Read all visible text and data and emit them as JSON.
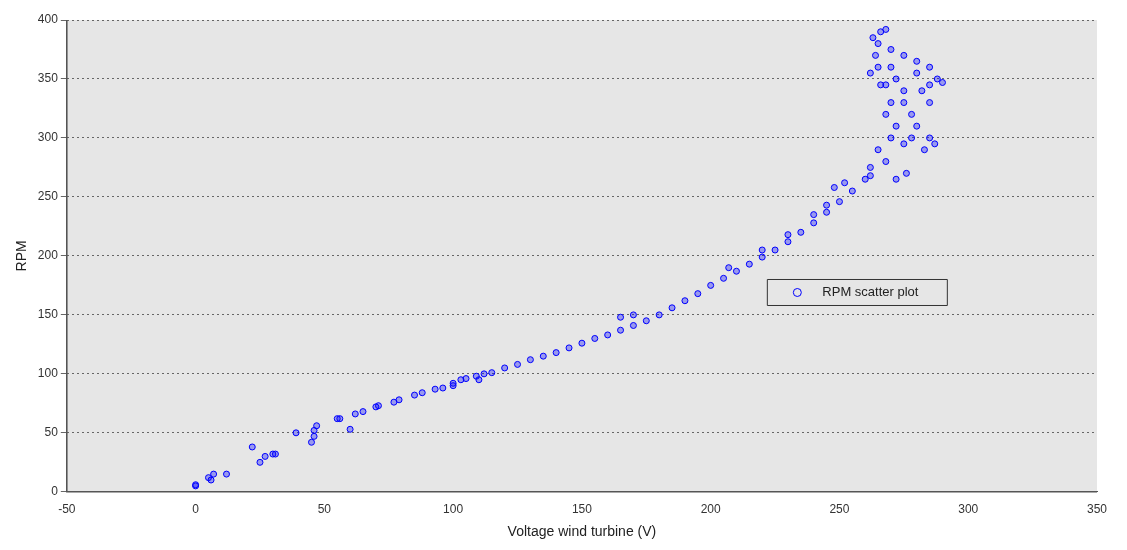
{
  "chart_data": {
    "type": "scatter",
    "xlabel": "Voltage wind turbine (V)",
    "ylabel": "RPM",
    "xlim": [
      -50,
      350
    ],
    "xticks": [
      -50,
      0,
      50,
      100,
      150,
      200,
      250,
      300,
      350
    ],
    "ylim": [
      0,
      400
    ],
    "yticks": [
      0,
      50,
      100,
      150,
      200,
      250,
      300,
      350,
      400
    ],
    "grid": "y",
    "legend": "right",
    "marker": "circle",
    "series": [
      {
        "name": "RPM scatter plot",
        "color": "#0000ff",
        "x": [
          0,
          0,
          5,
          6,
          7,
          12,
          22,
          25,
          27,
          30,
          31,
          39,
          45,
          46,
          46,
          47,
          55,
          56,
          60,
          62,
          65,
          70,
          71,
          77,
          79,
          85,
          88,
          93,
          96,
          100,
          100,
          103,
          105,
          109,
          110,
          112,
          115,
          120,
          125,
          130,
          135,
          140,
          145,
          150,
          155,
          160,
          165,
          165,
          170,
          170,
          175,
          180,
          185,
          190,
          195,
          200,
          205,
          207,
          210,
          215,
          220,
          220,
          225,
          230,
          230,
          235,
          240,
          240,
          245,
          245,
          248,
          250,
          252,
          255,
          260,
          262,
          262,
          265,
          270,
          268,
          275,
          280,
          285,
          275,
          278,
          282,
          285,
          288,
          290,
          285,
          280,
          275,
          270,
          265,
          263,
          266,
          268,
          264,
          265,
          262,
          268,
          272,
          275,
          270,
          268,
          272,
          278,
          283,
          287,
          266,
          270,
          280,
          285,
          272,
          276
        ],
        "values": [
          5,
          6,
          12,
          10,
          15,
          15,
          38,
          25,
          30,
          32,
          32,
          50,
          42,
          47,
          52,
          56,
          62,
          62,
          53,
          66,
          68,
          72,
          73,
          76,
          78,
          82,
          84,
          87,
          88,
          90,
          92,
          95,
          96,
          98,
          95,
          100,
          101,
          105,
          108,
          112,
          115,
          118,
          122,
          126,
          130,
          133,
          137,
          148,
          141,
          150,
          145,
          150,
          156,
          162,
          168,
          175,
          181,
          190,
          187,
          193,
          199,
          205,
          205,
          212,
          218,
          220,
          228,
          235,
          237,
          243,
          258,
          246,
          262,
          255,
          265,
          268,
          275,
          290,
          300,
          280,
          295,
          310,
          300,
          330,
          320,
          340,
          345,
          350,
          347,
          360,
          365,
          370,
          375,
          380,
          385,
          390,
          392,
          370,
          360,
          355,
          345,
          350,
          340,
          330,
          320,
          310,
          300,
          290,
          295,
          345,
          360,
          355,
          330,
          265,
          270
        ]
      }
    ]
  }
}
